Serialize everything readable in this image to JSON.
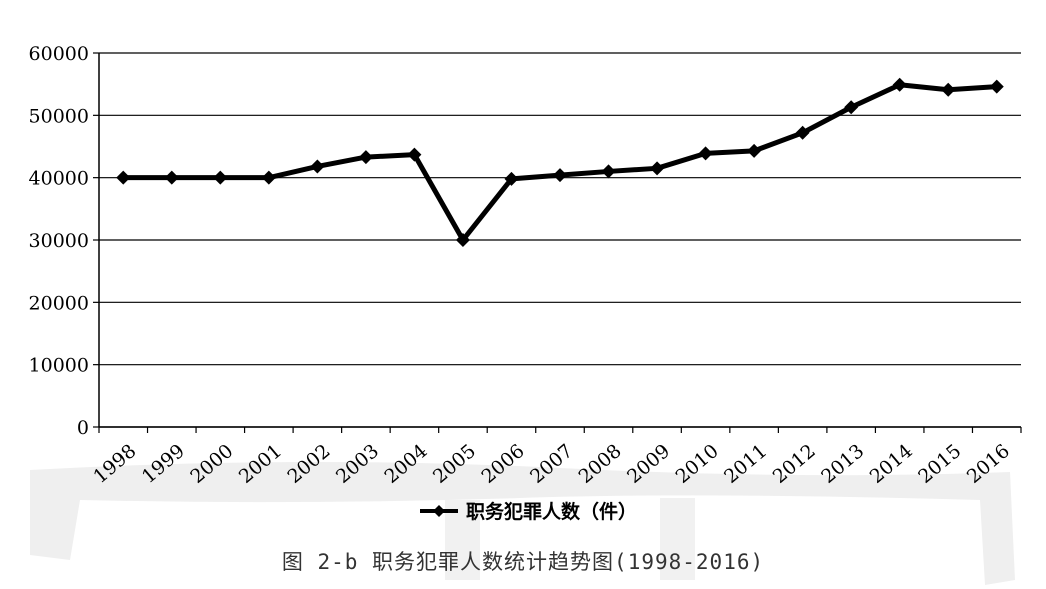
{
  "chart_data": {
    "type": "line",
    "x": [
      "1998",
      "1999",
      "2000",
      "2001",
      "2002",
      "2003",
      "2004",
      "2005",
      "2006",
      "2007",
      "2008",
      "2009",
      "2010",
      "2011",
      "2012",
      "2013",
      "2014",
      "2015",
      "2016"
    ],
    "series": [
      {
        "name": "职务犯罪人数（件）",
        "values": [
          40000,
          40000,
          40000,
          40000,
          41800,
          43300,
          43700,
          30000,
          39800,
          40400,
          41000,
          41500,
          43900,
          44300,
          47200,
          51300,
          54900,
          54100,
          54600
        ]
      }
    ],
    "ylim": [
      0,
      60000
    ],
    "yticks": [
      "0",
      "10000",
      "20000",
      "30000",
      "40000",
      "50000",
      "60000"
    ],
    "grid": true,
    "legend_position": "bottom",
    "title": "",
    "xlabel": "",
    "ylabel": ""
  },
  "caption": "图 2-b  职务犯罪人数统计趋势图(1998-2016)",
  "colors": {
    "line": "#000000",
    "grid": "#000000",
    "watermark": "#eeeeee"
  }
}
